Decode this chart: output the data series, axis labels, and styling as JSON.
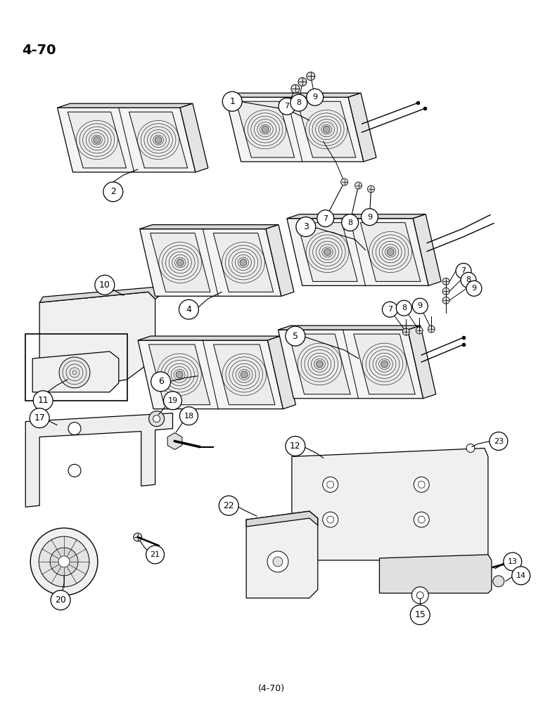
{
  "title": "4-70",
  "bg": "#ffffff",
  "fw": 7.72,
  "fh": 10.0,
  "dpi": 100
}
